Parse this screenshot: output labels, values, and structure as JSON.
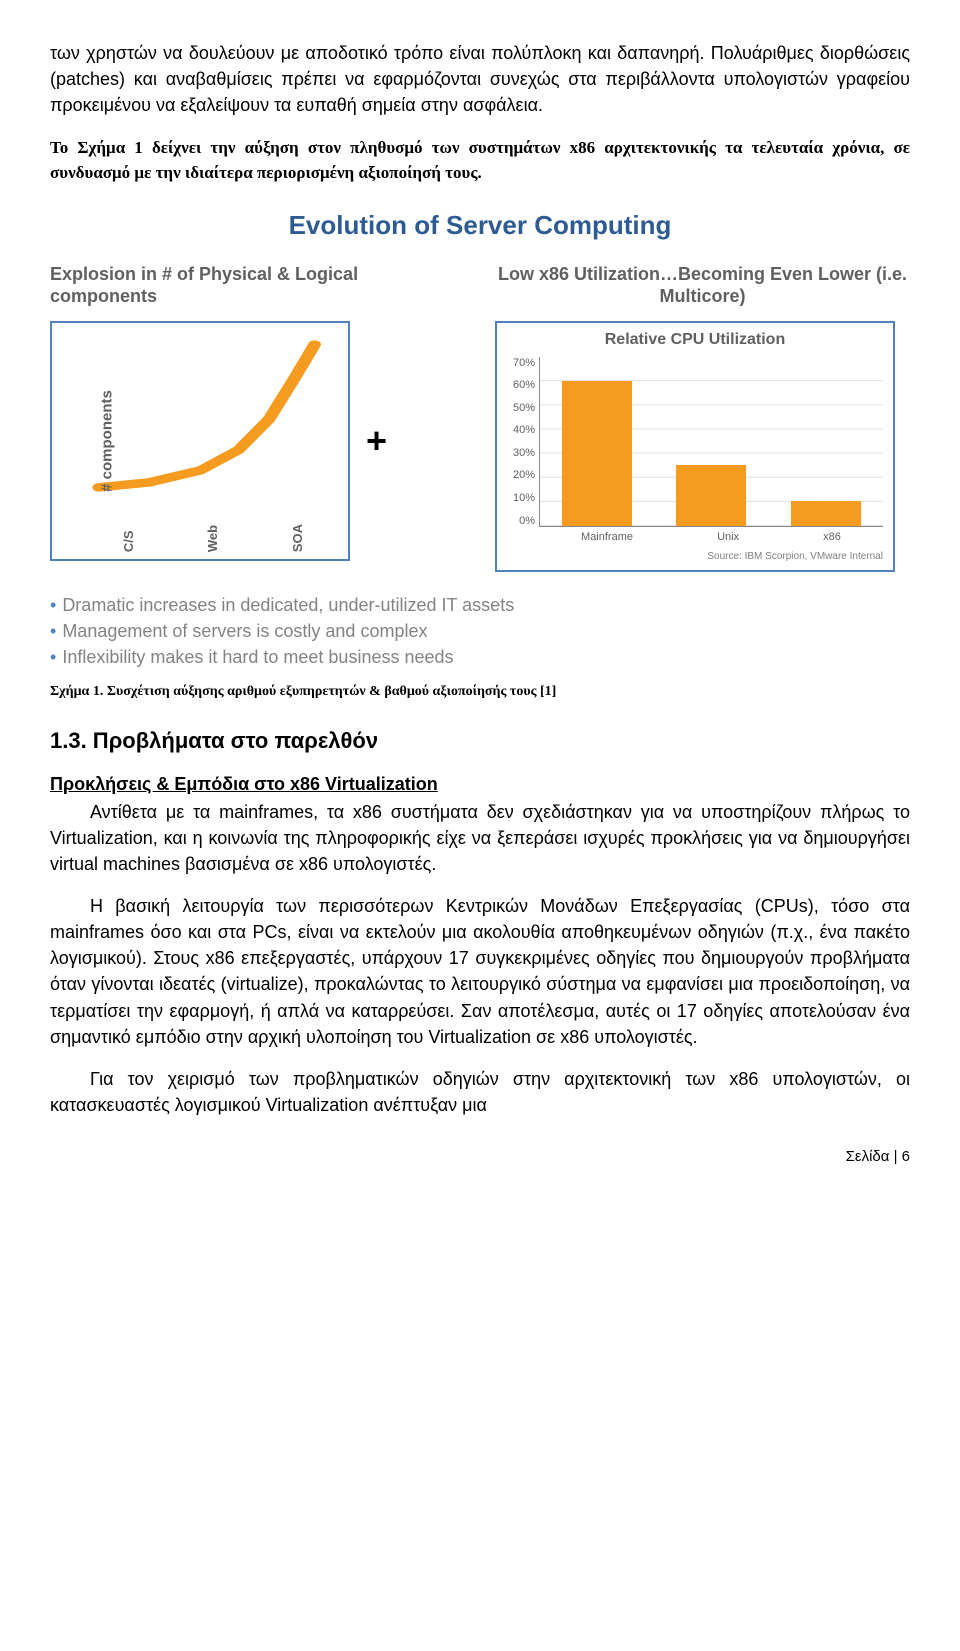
{
  "para_intro": "των χρηστών να δουλεύουν με αποδοτικό τρόπο είναι πολύπλοκη και δαπανηρή. Πολυάριθμες διορθώσεις (patches) και αναβαθμίσεις πρέπει να εφαρμόζονται συνεχώς στα περιβάλλοντα υπολογιστών γραφείου προκειμένου να εξαλείψουν τα ευπαθή σημεία στην ασφάλεια.",
  "italic_note": "Το Σχήμα 1 δείχνει την αύξηση στον πληθυσμό των συστημάτων x86 αρχιτεκτονικής τα τελευταία χρόνια, σε συνδυασμό με την ιδιαίτερα περιορισμένη αξιοποίησή τους.",
  "figure": {
    "main_title": "Evolution of Server Computing",
    "main_title_color": "#2f5b93",
    "left_head": "Explosion in # of Physical & Logical components",
    "right_head": "Low x86 Utilization…Becoming Even Lower (i.e. Multicore)",
    "plus": "+",
    "left_chart": {
      "type": "line",
      "y_label": "# components",
      "x_categories": [
        "C/S",
        "Web",
        "SOA"
      ],
      "line_color": "#f59b1f",
      "line_width": 5,
      "border_color": "#4f81bd",
      "curve_points_pct": [
        [
          5,
          92
        ],
        [
          25,
          89
        ],
        [
          45,
          82
        ],
        [
          60,
          70
        ],
        [
          72,
          52
        ],
        [
          82,
          28
        ],
        [
          90,
          8
        ]
      ]
    },
    "right_chart": {
      "type": "bar",
      "title": "Relative CPU Utilization",
      "categories": [
        "Mainframe",
        "Unix",
        "x86"
      ],
      "values": [
        60,
        25,
        10
      ],
      "ylim": [
        0,
        70
      ],
      "ytick_step": 10,
      "y_ticks": [
        "70%",
        "60%",
        "50%",
        "40%",
        "30%",
        "20%",
        "10%",
        "0%"
      ],
      "bar_color": "#f59b1f",
      "border_color": "#4f81bd",
      "grid_color": "#e0e0e0",
      "source": "Source: IBM Scorpion, VMware Internal"
    },
    "bullets": [
      "Dramatic increases in dedicated, under-utilized IT assets",
      "Management of servers is costly and complex",
      "Inflexibility makes it hard to meet business needs"
    ],
    "bullet_color": "#4f81bd",
    "bullet_text_color": "#838383"
  },
  "figure_caption": "Σχήμα 1. Συσχέτιση αύξησης αριθμού εξυπηρετητών & βαθμού αξιοποίησής τους [1]",
  "section_heading": "1.3. Προβλήματα στο παρελθόν",
  "sub_heading": "Προκλήσεις & Εμπόδια στο x86 Virtualization",
  "para1": "Αντίθετα με τα mainframes, τα x86 συστήματα δεν σχεδιάστηκαν για να υποστηρίζουν πλήρως το Virtualization, και η κοινωνία της πληροφορικής είχε να ξεπεράσει ισχυρές προκλήσεις για να δημιουργήσει virtual machines βασισμένα σε x86 υπολογιστές.",
  "para2": "Η βασική λειτουργία των περισσότερων Κεντρικών Μονάδων Επεξεργασίας (CPUs), τόσο στα mainframes όσο και στα PCs, είναι να εκτελούν μια ακολουθία αποθηκευμένων οδηγιών (π.χ., ένα πακέτο λογισμικού). Στους x86 επεξεργαστές, υπάρχουν 17 συγκεκριμένες οδηγίες που δημιουργούν προβλήματα όταν γίνονται ιδεατές (virtualize), προκαλώντας το λειτουργικό σύστημα να εμφανίσει μια προειδοποίηση, να τερματίσει την εφαρμογή, ή απλά να καταρρεύσει. Σαν αποτέλεσμα, αυτές οι 17 οδηγίες αποτελούσαν ένα σημαντικό εμπόδιο στην αρχική υλοποίηση του Virtualization σε x86 υπολογιστές.",
  "para3": "Για τον χειρισμό των προβληματικών οδηγιών στην αρχιτεκτονική των x86 υπολογιστών, οι κατασκευαστές λογισμικού Virtualization ανέπτυξαν μια",
  "footer": "Σελίδα | 6"
}
